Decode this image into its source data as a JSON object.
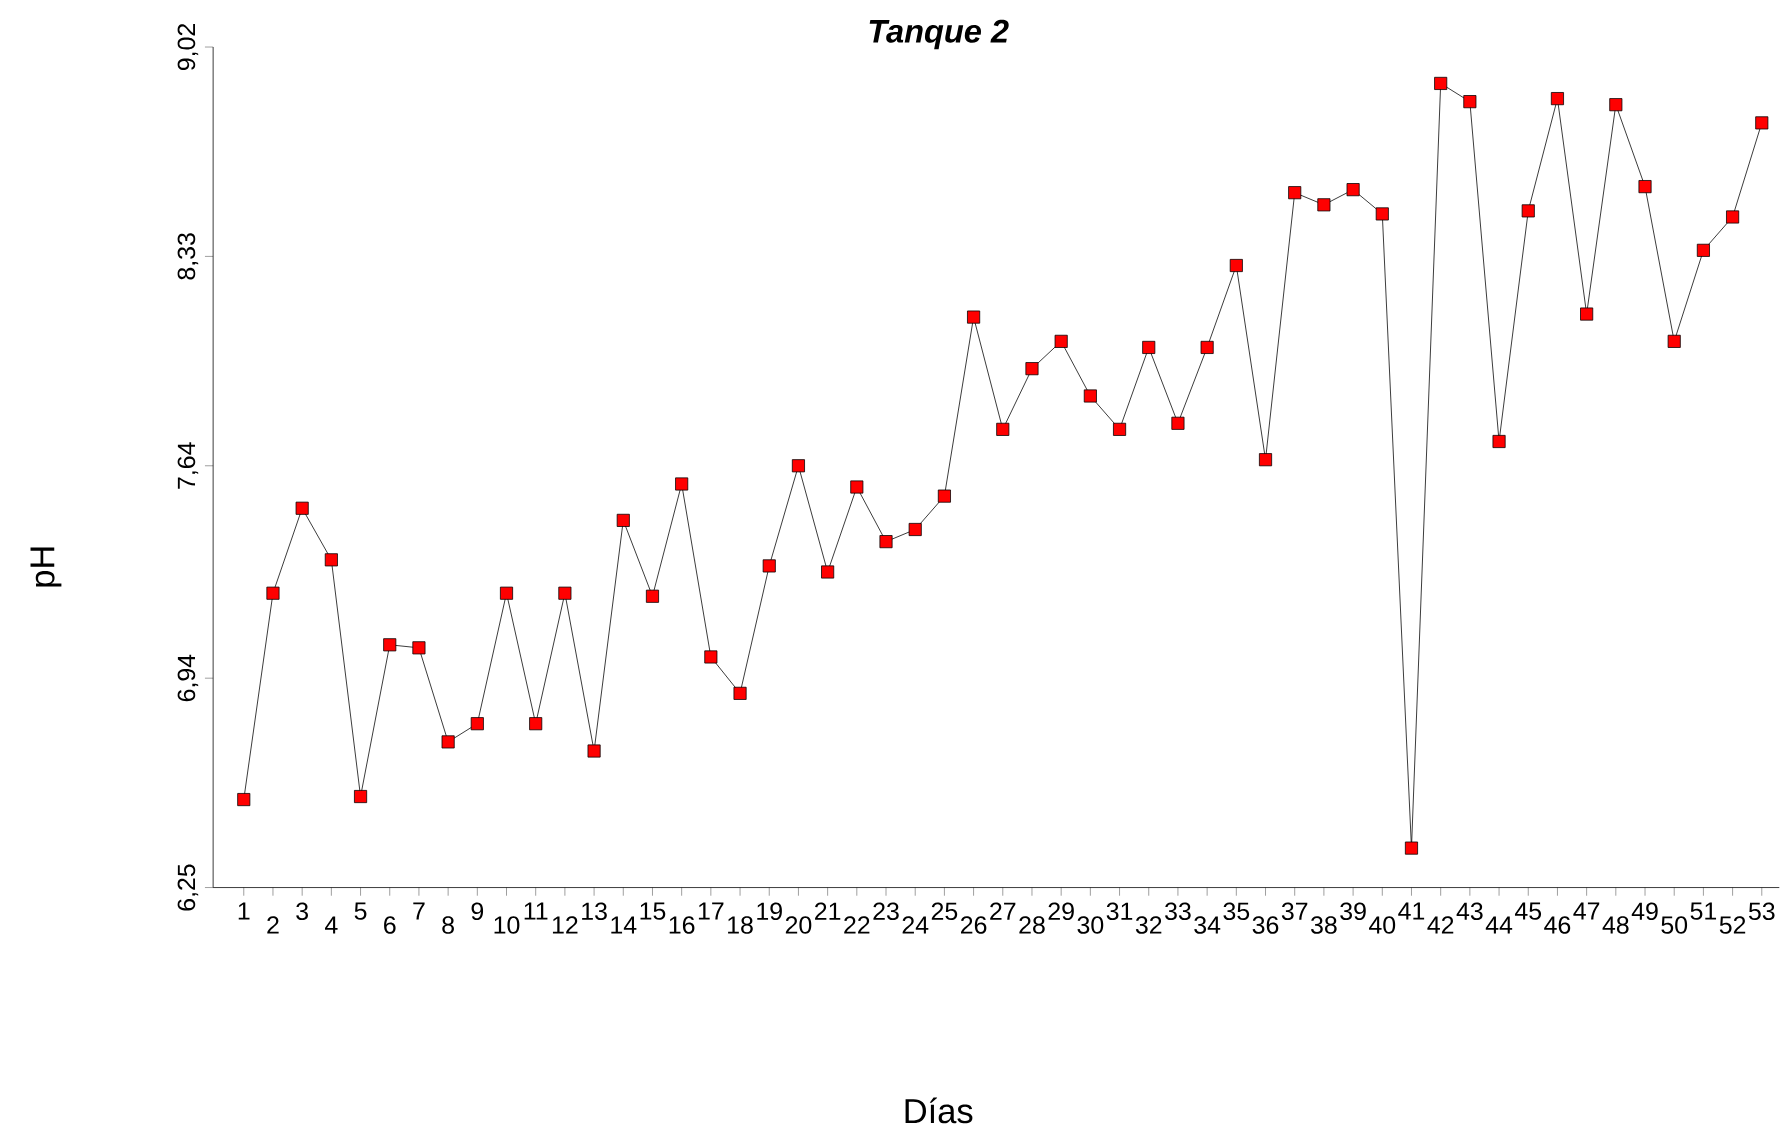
{
  "chart_data": {
    "type": "line",
    "title": "Tanque 2",
    "xlabel": "Días",
    "ylabel": "pH",
    "categories": [
      "1",
      "2",
      "3",
      "4",
      "5",
      "6",
      "7",
      "8",
      "9",
      "10",
      "11",
      "12",
      "13",
      "14",
      "15",
      "16",
      "17",
      "18",
      "19",
      "20",
      "21",
      "22",
      "23",
      "24",
      "25",
      "26",
      "27",
      "28",
      "29",
      "30",
      "31",
      "32",
      "33",
      "34",
      "35",
      "36",
      "37",
      "38",
      "39",
      "40",
      "41",
      "42",
      "43",
      "44",
      "45",
      "46",
      "47",
      "48",
      "49",
      "50",
      "51",
      "52",
      "53"
    ],
    "series": [
      {
        "color": "#ff0000",
        "values": [
          6.54,
          7.22,
          7.5,
          7.33,
          6.55,
          7.05,
          7.04,
          6.73,
          6.79,
          7.22,
          6.79,
          7.22,
          6.7,
          7.46,
          7.21,
          7.58,
          7.01,
          6.89,
          7.31,
          7.64,
          7.29,
          7.57,
          7.39,
          7.43,
          7.54,
          8.13,
          7.76,
          7.96,
          8.05,
          7.87,
          7.76,
          8.03,
          7.78,
          8.03,
          8.3,
          7.66,
          8.54,
          8.5,
          8.55,
          8.47,
          6.38,
          8.9,
          8.84,
          7.72,
          8.48,
          8.85,
          8.14,
          8.83,
          8.56,
          8.05,
          8.35,
          8.46,
          8.77
        ]
      }
    ],
    "ylim": [
      6.25,
      9.02
    ],
    "yticks": [
      {
        "value": 6.25,
        "label": "6,25"
      },
      {
        "value": 6.94,
        "label": "6,94"
      },
      {
        "value": 7.64,
        "label": "7,64"
      },
      {
        "value": 8.33,
        "label": "8,33"
      },
      {
        "value": 9.02,
        "label": "9,02"
      }
    ],
    "marker": "square",
    "line_style": "solid"
  }
}
